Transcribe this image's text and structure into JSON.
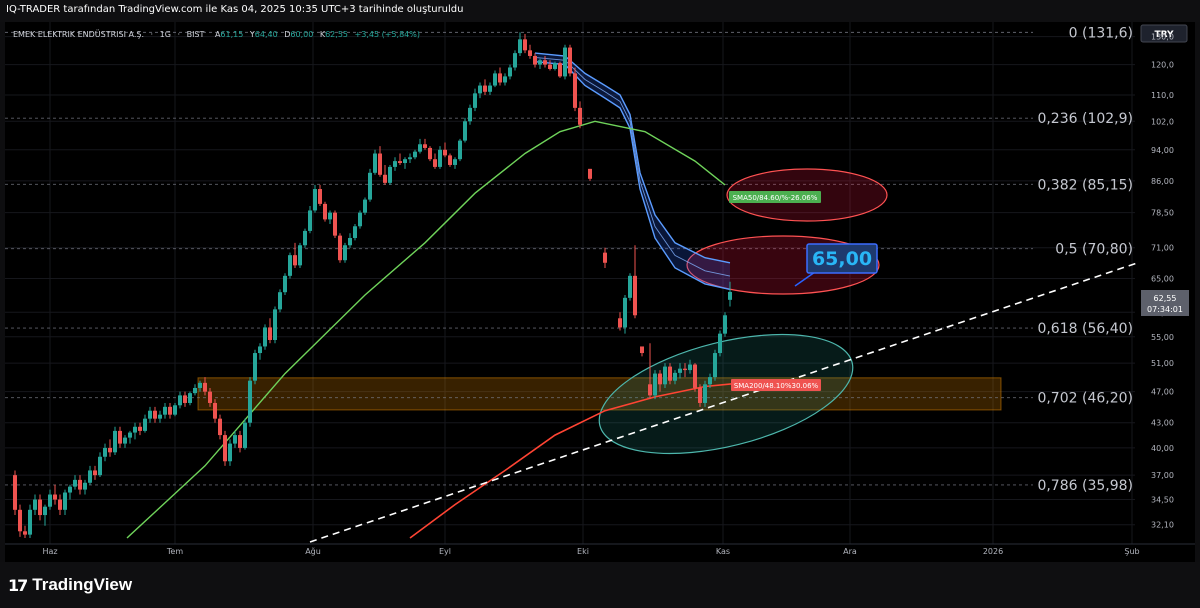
{
  "header": {
    "attribution": "IQ-TRADER tarafından TradingView.com ile Kas 04, 2025 10:35 UTC+3 tarihinde oluşturuldu"
  },
  "instrument": {
    "name": "EMEK ELEKTRIK ENDÜSTRISI A.Ş.",
    "interval": "1G",
    "exchange": "BIST",
    "sep": "·",
    "open_label": "A",
    "open": "61,15",
    "high_label": "Y",
    "high": "64,40",
    "low_label": "D",
    "low": "60,00",
    "close_label": "K",
    "close": "62,55",
    "change": "+3,45 (+5,84%)"
  },
  "currency_button": "TRY",
  "price_badge": {
    "price": "62,55",
    "countdown": "07:34:01"
  },
  "target_callout": "65,00",
  "branding": {
    "name": "TradingView"
  },
  "colors": {
    "up": "#26a69a",
    "down": "#ef5350",
    "sma50": "#4caf50",
    "sma200": "#f44336",
    "channel": "#2962ff",
    "zone": "#ff9800"
  },
  "chart_data": {
    "type": "candlestick",
    "y_scale": "log",
    "ylim": [
      30.9,
      132.5
    ],
    "price_axis_ticks": [
      "130,0",
      "120,0",
      "110,0",
      "102,0",
      "94,00",
      "86,00",
      "78,50",
      "71,00",
      "65,00",
      "59,00",
      "55,00",
      "51,00",
      "47,00",
      "43,00",
      "40,00",
      "37,00",
      "34,50",
      "32,10"
    ],
    "time_axis_labels": [
      "Haz",
      "Tem",
      "Ağu",
      "Eyl",
      "Eki",
      "Kas",
      "Ara",
      "2026",
      "Şub"
    ],
    "fibonacci": [
      {
        "level": "0",
        "price": 131.6,
        "label": "0 (131,6)"
      },
      {
        "level": "0,236",
        "price": 102.9,
        "label": "0,236 (102,9)"
      },
      {
        "level": "0,382",
        "price": 85.15,
        "label": "0,382 (85,15)"
      },
      {
        "level": "0,5",
        "price": 70.8,
        "label": "0,5 (70,80)"
      },
      {
        "level": "0,618",
        "price": 56.4,
        "label": "0,618 (56,40)"
      },
      {
        "level": "0,702",
        "price": 46.2,
        "label": "0,702 (46,20)"
      },
      {
        "level": "0,786",
        "price": 35.98,
        "label": "0,786 (35,98)"
      }
    ],
    "indicators": [
      {
        "name": "SMA50",
        "label": "SMA50/84.60/%-26.06%",
        "value": 84.6
      },
      {
        "name": "SMA200",
        "label": "SMA200/48.10%30.06%",
        "value": 48.1
      }
    ],
    "support_zone": [
      44.6,
      48.9
    ],
    "target": 65.0,
    "trendline": {
      "from": "Ağu",
      "to": "2026",
      "style": "dashed"
    },
    "sma50_path": [
      [
        122,
        30.9
      ],
      [
        200,
        38
      ],
      [
        280,
        49.5
      ],
      [
        360,
        62
      ],
      [
        420,
        72
      ],
      [
        470,
        83
      ],
      [
        520,
        93
      ],
      [
        555,
        99
      ],
      [
        590,
        102
      ],
      [
        640,
        99
      ],
      [
        690,
        91
      ],
      [
        720,
        85
      ]
    ],
    "sma200_path": [
      [
        405,
        30.9
      ],
      [
        450,
        34
      ],
      [
        500,
        37.5
      ],
      [
        550,
        41.5
      ],
      [
        600,
        44.5
      ],
      [
        650,
        46.3
      ],
      [
        700,
        47.7
      ],
      [
        730,
        48.1
      ]
    ],
    "channel_upper": [
      [
        530,
        124
      ],
      [
        560,
        123
      ],
      [
        580,
        117
      ],
      [
        600,
        113
      ],
      [
        615,
        110
      ],
      [
        625,
        104
      ],
      [
        635,
        88
      ],
      [
        650,
        78
      ],
      [
        670,
        72
      ],
      [
        700,
        69
      ],
      [
        725,
        68
      ]
    ],
    "channel_lower": [
      [
        530,
        121
      ],
      [
        560,
        120
      ],
      [
        580,
        113
      ],
      [
        600,
        109
      ],
      [
        615,
        106
      ],
      [
        625,
        100
      ],
      [
        635,
        84
      ],
      [
        650,
        73
      ],
      [
        670,
        67
      ],
      [
        700,
        64
      ],
      [
        725,
        63
      ]
    ],
    "ohlc": [
      [
        10,
        37,
        37.5,
        33,
        33.5
      ],
      [
        15,
        33.5,
        34,
        31,
        31.5
      ],
      [
        20,
        31.5,
        32,
        30.9,
        31.2
      ],
      [
        25,
        31.2,
        34,
        30.9,
        33.5
      ],
      [
        30,
        33.5,
        35,
        33,
        34.5
      ],
      [
        35,
        34.5,
        35,
        32.5,
        33
      ],
      [
        40,
        33,
        34,
        32,
        33.8
      ],
      [
        45,
        33.8,
        35.5,
        33.5,
        35
      ],
      [
        50,
        35,
        36,
        34,
        34.5
      ],
      [
        55,
        34.5,
        35,
        33,
        33.5
      ],
      [
        60,
        33.5,
        35.5,
        33,
        35.2
      ],
      [
        65,
        35.2,
        36,
        34.5,
        35.8
      ],
      [
        70,
        35.8,
        37,
        35.5,
        36.5
      ],
      [
        75,
        36.5,
        37,
        35,
        35.5
      ],
      [
        80,
        35.5,
        36.5,
        35,
        36.2
      ],
      [
        85,
        36.2,
        38,
        36,
        37.5
      ],
      [
        90,
        37.5,
        38,
        36.5,
        37
      ],
      [
        95,
        37,
        39.5,
        36.8,
        39
      ],
      [
        100,
        39,
        40.5,
        38.5,
        40
      ],
      [
        105,
        40,
        41,
        39,
        39.5
      ],
      [
        110,
        39.5,
        42.5,
        39.2,
        42
      ],
      [
        115,
        42,
        42.5,
        40,
        40.5
      ],
      [
        120,
        40.5,
        41.5,
        40,
        41.2
      ],
      [
        125,
        41.2,
        42,
        40.5,
        41.8
      ],
      [
        130,
        41.8,
        43,
        41,
        42.5
      ],
      [
        135,
        42.5,
        43,
        41.5,
        42
      ],
      [
        140,
        42,
        44,
        41.8,
        43.5
      ],
      [
        145,
        43.5,
        45,
        43,
        44.5
      ],
      [
        150,
        44.5,
        45,
        43,
        43.5
      ],
      [
        155,
        43.5,
        44.5,
        43,
        44
      ],
      [
        160,
        44,
        45.5,
        43.5,
        45
      ],
      [
        165,
        45,
        45.5,
        43.5,
        44
      ],
      [
        170,
        44,
        45.5,
        43.8,
        45.2
      ],
      [
        175,
        45.2,
        47,
        44.8,
        46.5
      ],
      [
        180,
        46.5,
        47,
        45,
        45.5
      ],
      [
        185,
        45.5,
        47,
        45.2,
        46.8
      ],
      [
        190,
        46.8,
        48,
        46.5,
        47.5
      ],
      [
        195,
        47.5,
        48.5,
        47,
        48.2
      ],
      [
        200,
        48.2,
        49,
        46.5,
        47
      ],
      [
        205,
        47,
        47.5,
        45,
        45.5
      ],
      [
        210,
        45.5,
        46,
        43,
        43.5
      ],
      [
        215,
        43.5,
        44,
        41,
        41.5
      ],
      [
        220,
        41.5,
        42,
        38,
        38.5
      ],
      [
        225,
        38.5,
        41,
        38,
        40.5
      ],
      [
        230,
        40.5,
        42,
        40,
        41.5
      ],
      [
        235,
        41.5,
        42,
        39.5,
        40
      ],
      [
        240,
        40,
        43.5,
        39.8,
        43
      ],
      [
        245,
        43,
        49,
        42.5,
        48.5
      ],
      [
        250,
        48.5,
        53,
        48,
        52.5
      ],
      [
        255,
        52.5,
        54,
        51.5,
        53.5
      ],
      [
        260,
        53.5,
        57,
        53,
        56.5
      ],
      [
        265,
        56.5,
        58,
        54,
        54.5
      ],
      [
        270,
        54.5,
        60,
        54,
        59.5
      ],
      [
        275,
        59.5,
        63,
        59,
        62.5
      ],
      [
        280,
        62.5,
        66,
        62,
        65.5
      ],
      [
        285,
        65.5,
        70,
        65,
        69.5
      ],
      [
        290,
        69.5,
        72,
        67,
        67.5
      ],
      [
        295,
        67.5,
        72,
        67,
        71.5
      ],
      [
        300,
        71.5,
        75,
        71,
        74.5
      ],
      [
        305,
        74.5,
        80,
        74,
        79
      ],
      [
        310,
        79,
        85,
        78.5,
        84
      ],
      [
        315,
        84,
        85,
        80,
        80.5
      ],
      [
        320,
        80.5,
        81,
        76.5,
        77
      ],
      [
        325,
        77,
        79,
        76,
        78.5
      ],
      [
        330,
        78.5,
        79,
        73,
        73.5
      ],
      [
        335,
        73.5,
        74,
        68,
        68.5
      ],
      [
        340,
        68.5,
        72,
        68,
        71.5
      ],
      [
        345,
        71.5,
        74,
        71,
        73
      ],
      [
        350,
        73,
        76,
        72.5,
        75.5
      ],
      [
        355,
        75.5,
        79,
        75,
        78.5
      ],
      [
        360,
        78.5,
        82,
        78,
        81.5
      ],
      [
        365,
        81.5,
        89,
        81,
        88
      ],
      [
        370,
        88,
        94,
        87.5,
        93
      ],
      [
        375,
        93,
        95,
        87,
        87.5
      ],
      [
        380,
        87.5,
        90,
        85,
        85.5
      ],
      [
        385,
        85.5,
        90,
        85,
        89.5
      ],
      [
        390,
        89.5,
        92,
        88.5,
        91
      ],
      [
        395,
        91,
        93,
        90,
        90.5
      ],
      [
        400,
        90.5,
        92,
        89,
        91.5
      ],
      [
        405,
        91.5,
        93,
        90.5,
        92
      ],
      [
        410,
        92,
        94,
        91.5,
        93.5
      ],
      [
        415,
        93.5,
        97,
        93,
        95.5
      ],
      [
        420,
        95.5,
        97,
        94,
        94.5
      ],
      [
        425,
        94.5,
        95,
        91,
        91.5
      ],
      [
        430,
        91.5,
        93,
        89,
        89.5
      ],
      [
        435,
        89.5,
        95,
        89,
        94
      ],
      [
        440,
        94,
        96,
        92,
        92.5
      ],
      [
        445,
        92.5,
        93,
        89.5,
        90
      ],
      [
        450,
        90,
        92,
        89,
        91.5
      ],
      [
        455,
        91.5,
        97,
        91,
        96.5
      ],
      [
        460,
        96.5,
        103,
        96,
        102
      ],
      [
        465,
        102,
        107,
        101,
        106
      ],
      [
        470,
        106,
        112,
        105,
        110.5
      ],
      [
        475,
        110.5,
        114,
        109,
        113
      ],
      [
        480,
        113,
        115,
        110,
        111
      ],
      [
        485,
        111,
        114,
        110,
        113
      ],
      [
        490,
        113,
        118,
        112.5,
        117
      ],
      [
        495,
        117,
        119,
        113,
        114
      ],
      [
        500,
        114,
        117,
        113,
        116
      ],
      [
        505,
        116,
        120,
        115,
        119
      ],
      [
        510,
        119,
        125,
        118,
        124
      ],
      [
        515,
        124,
        131.6,
        123,
        129
      ],
      [
        520,
        129,
        131,
        124,
        125
      ],
      [
        525,
        125,
        127,
        122,
        123
      ],
      [
        530,
        123,
        124,
        119,
        120
      ],
      [
        535,
        120,
        122,
        118.5,
        121.5
      ],
      [
        540,
        121.5,
        123,
        119,
        120
      ],
      [
        545,
        120,
        121.5,
        118,
        118.5
      ],
      [
        550,
        118.5,
        121,
        118,
        120.5
      ],
      [
        555,
        120.5,
        121,
        115.5,
        116
      ],
      [
        560,
        116,
        127,
        115,
        126
      ],
      [
        565,
        126,
        127,
        116,
        117
      ],
      [
        570,
        117,
        119,
        105,
        106
      ],
      [
        575,
        106,
        108,
        100,
        101
      ],
      [
        585,
        89,
        89,
        86,
        86.5
      ],
      [
        600,
        70,
        71,
        67,
        68
      ],
      [
        615,
        58,
        59,
        56,
        56.5
      ],
      [
        620,
        56.5,
        62,
        55.5,
        61.5
      ],
      [
        625,
        61.5,
        66,
        61,
        65.5
      ],
      [
        630,
        65.5,
        71.5,
        58,
        58.5
      ],
      [
        637,
        53.5,
        53.5,
        52,
        52.5
      ],
      [
        645,
        48,
        54,
        46,
        46.5
      ],
      [
        650,
        46.5,
        50,
        46,
        49.5
      ],
      [
        655,
        49.5,
        50,
        47,
        48
      ],
      [
        660,
        48,
        51,
        47.5,
        50.5
      ],
      [
        665,
        50.5,
        51,
        48,
        48.5
      ],
      [
        670,
        48.5,
        50,
        48,
        49.6
      ],
      [
        675,
        49.6,
        51,
        48.8,
        50.2
      ],
      [
        680,
        50.2,
        51,
        49,
        50
      ],
      [
        685,
        50,
        51.5,
        49.5,
        50.8
      ],
      [
        690,
        50.8,
        51,
        47,
        47.5
      ],
      [
        695,
        47.5,
        48,
        45,
        45.5
      ],
      [
        700,
        45.5,
        48.5,
        45,
        48
      ],
      [
        705,
        48,
        49.5,
        47.5,
        49
      ],
      [
        710,
        49,
        53,
        48.5,
        52.5
      ],
      [
        715,
        52.5,
        56,
        52,
        55.5
      ],
      [
        720,
        55.5,
        59,
        55,
        58.5
      ],
      [
        725,
        61.15,
        64.4,
        60,
        62.55
      ]
    ]
  }
}
